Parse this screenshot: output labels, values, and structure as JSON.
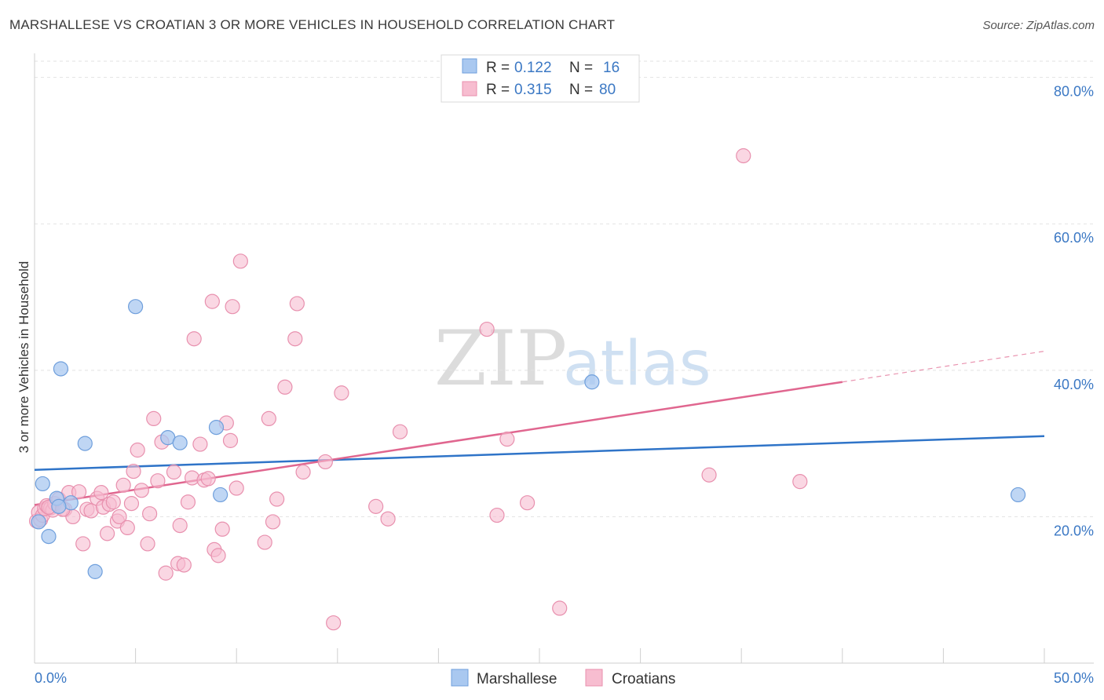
{
  "header": {
    "title": "MARSHALLESE VS CROATIAN 3 OR MORE VEHICLES IN HOUSEHOLD CORRELATION CHART",
    "source": "Source: ZipAtlas.com"
  },
  "watermark": {
    "zip": "ZIP",
    "atlas": "atlas"
  },
  "colors": {
    "marshallese_fill": "#a9c8f0",
    "marshallese_stroke": "#6f9fdc",
    "marshallese_line": "#2f74c8",
    "croatian_fill": "#f7bdd0",
    "croatian_stroke": "#e890ae",
    "croatian_line": "#e0668f",
    "axis_text": "#3b78c4"
  },
  "legend": {
    "rows": [
      {
        "r_label": "R =",
        "r_value": "0.122",
        "n_label": "N =",
        "n_value": "16"
      },
      {
        "r_label": "R =",
        "r_value": "0.315",
        "n_label": "N =",
        "n_value": "80"
      }
    ]
  },
  "bottom_legend": [
    "Marshallese",
    "Croatians"
  ],
  "chart_data": {
    "type": "scatter",
    "title": "MARSHALLESE VS CROATIAN 3 OR MORE VEHICLES IN HOUSEHOLD CORRELATION CHART",
    "xlabel": "",
    "ylabel": "3 or more Vehicles in Household",
    "xlim": [
      0,
      50
    ],
    "ylim": [
      0,
      82
    ],
    "x_tick_labels": [
      "0.0%",
      "50.0%"
    ],
    "y_ticks": [
      20,
      40,
      60,
      80
    ],
    "y_tick_labels": [
      "20.0%",
      "40.0%",
      "60.0%",
      "80.0%"
    ],
    "grid": true,
    "legend_position": "top-center",
    "series": [
      {
        "name": "Marshallese",
        "r": 0.122,
        "n": 16,
        "trend": {
          "x0": 0,
          "y0": 26.4,
          "x1": 50,
          "y1": 31.0,
          "dashed_from": null
        },
        "points": [
          [
            0.2,
            19.3
          ],
          [
            0.4,
            24.5
          ],
          [
            0.7,
            17.3
          ],
          [
            1.1,
            22.5
          ],
          [
            1.3,
            40.2
          ],
          [
            1.8,
            21.9
          ],
          [
            2.5,
            30.0
          ],
          [
            3.0,
            12.5
          ],
          [
            5.0,
            48.7
          ],
          [
            6.6,
            30.8
          ],
          [
            7.2,
            30.1
          ],
          [
            9.0,
            32.2
          ],
          [
            9.2,
            23.0
          ],
          [
            27.6,
            38.4
          ],
          [
            48.7,
            23.0
          ],
          [
            1.2,
            21.4
          ]
        ]
      },
      {
        "name": "Croatians",
        "r": 0.315,
        "n": 80,
        "trend": {
          "x0": 0,
          "y0": 21.6,
          "x1": 50,
          "y1": 42.6,
          "dashed_from": 40
        },
        "points": [
          [
            0.1,
            19.4
          ],
          [
            0.2,
            20.6
          ],
          [
            0.3,
            19.6
          ],
          [
            0.4,
            20.2
          ],
          [
            0.5,
            21.1
          ],
          [
            0.6,
            21.5
          ],
          [
            0.8,
            21.2
          ],
          [
            0.9,
            20.9
          ],
          [
            1.0,
            21.8
          ],
          [
            1.2,
            22.4
          ],
          [
            1.5,
            21.0
          ],
          [
            1.7,
            23.3
          ],
          [
            1.9,
            20.0
          ],
          [
            2.2,
            23.4
          ],
          [
            2.4,
            16.3
          ],
          [
            2.6,
            21.0
          ],
          [
            2.8,
            20.8
          ],
          [
            3.1,
            22.5
          ],
          [
            3.3,
            23.3
          ],
          [
            3.4,
            21.3
          ],
          [
            3.6,
            17.7
          ],
          [
            3.7,
            21.7
          ],
          [
            3.9,
            22.0
          ],
          [
            4.1,
            19.4
          ],
          [
            4.2,
            20.0
          ],
          [
            4.4,
            24.3
          ],
          [
            4.6,
            18.5
          ],
          [
            4.8,
            21.8
          ],
          [
            4.9,
            26.2
          ],
          [
            5.1,
            29.1
          ],
          [
            5.3,
            23.6
          ],
          [
            5.6,
            16.3
          ],
          [
            5.7,
            20.4
          ],
          [
            5.9,
            33.4
          ],
          [
            6.1,
            24.9
          ],
          [
            6.3,
            30.2
          ],
          [
            6.5,
            12.3
          ],
          [
            6.9,
            26.1
          ],
          [
            7.1,
            13.6
          ],
          [
            7.2,
            18.8
          ],
          [
            7.4,
            13.4
          ],
          [
            7.6,
            22.0
          ],
          [
            7.8,
            25.3
          ],
          [
            7.9,
            44.3
          ],
          [
            8.2,
            29.9
          ],
          [
            8.4,
            25.0
          ],
          [
            8.6,
            25.2
          ],
          [
            8.8,
            49.4
          ],
          [
            8.9,
            15.5
          ],
          [
            9.1,
            14.7
          ],
          [
            9.3,
            18.3
          ],
          [
            9.5,
            32.8
          ],
          [
            9.7,
            30.4
          ],
          [
            9.8,
            48.7
          ],
          [
            10.0,
            23.9
          ],
          [
            10.2,
            54.9
          ],
          [
            11.4,
            16.5
          ],
          [
            11.6,
            33.4
          ],
          [
            11.8,
            19.3
          ],
          [
            12.0,
            22.4
          ],
          [
            12.4,
            37.7
          ],
          [
            12.9,
            44.3
          ],
          [
            13.0,
            49.1
          ],
          [
            13.3,
            26.1
          ],
          [
            14.4,
            27.5
          ],
          [
            14.8,
            5.5
          ],
          [
            15.2,
            36.9
          ],
          [
            16.9,
            21.4
          ],
          [
            17.5,
            19.7
          ],
          [
            18.1,
            31.6
          ],
          [
            22.4,
            45.6
          ],
          [
            22.9,
            20.2
          ],
          [
            23.4,
            30.6
          ],
          [
            24.4,
            21.9
          ],
          [
            26.0,
            7.5
          ],
          [
            33.4,
            25.7
          ],
          [
            35.1,
            69.3
          ],
          [
            37.9,
            24.8
          ],
          [
            1.4,
            21.0
          ],
          [
            0.7,
            21.3
          ]
        ]
      }
    ]
  }
}
